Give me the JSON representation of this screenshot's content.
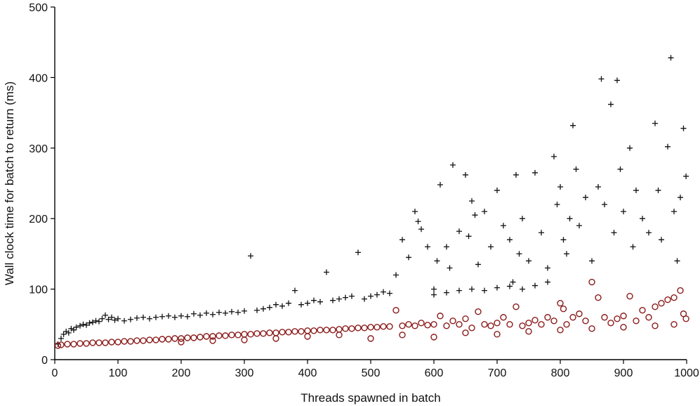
{
  "chart_data": {
    "type": "scatter",
    "title": "",
    "xlabel": "Threads spawned in batch",
    "ylabel": "Wall clock time for batch to return (ms)",
    "xlim": [
      0,
      1000
    ],
    "ylim": [
      0,
      500
    ],
    "xticks": [
      0,
      100,
      200,
      300,
      400,
      500,
      600,
      700,
      800,
      900,
      1000
    ],
    "yticks": [
      0,
      100,
      200,
      300,
      400,
      500
    ],
    "grid": false,
    "legend": "none",
    "colors": {
      "plus": "#111111",
      "circle": "#8b1a1a"
    },
    "series": [
      {
        "marker": "plus",
        "points": [
          [
            5,
            22
          ],
          [
            10,
            30
          ],
          [
            14,
            36
          ],
          [
            18,
            40
          ],
          [
            22,
            38
          ],
          [
            26,
            44
          ],
          [
            30,
            42
          ],
          [
            34,
            46
          ],
          [
            40,
            48
          ],
          [
            45,
            50
          ],
          [
            50,
            49
          ],
          [
            55,
            52
          ],
          [
            60,
            53
          ],
          [
            65,
            55
          ],
          [
            70,
            54
          ],
          [
            75,
            58
          ],
          [
            80,
            63
          ],
          [
            85,
            57
          ],
          [
            90,
            60
          ],
          [
            95,
            56
          ],
          [
            100,
            58
          ],
          [
            110,
            55
          ],
          [
            120,
            57
          ],
          [
            130,
            59
          ],
          [
            140,
            60
          ],
          [
            150,
            58
          ],
          [
            160,
            60
          ],
          [
            170,
            61
          ],
          [
            180,
            62
          ],
          [
            190,
            60
          ],
          [
            200,
            62
          ],
          [
            210,
            61
          ],
          [
            220,
            65
          ],
          [
            230,
            63
          ],
          [
            240,
            66
          ],
          [
            250,
            64
          ],
          [
            260,
            67
          ],
          [
            270,
            66
          ],
          [
            280,
            68
          ],
          [
            290,
            67
          ],
          [
            300,
            69
          ],
          [
            310,
            147
          ],
          [
            320,
            70
          ],
          [
            330,
            72
          ],
          [
            340,
            74
          ],
          [
            350,
            78
          ],
          [
            360,
            76
          ],
          [
            370,
            80
          ],
          [
            380,
            98
          ],
          [
            390,
            78
          ],
          [
            400,
            80
          ],
          [
            410,
            84
          ],
          [
            420,
            82
          ],
          [
            430,
            124
          ],
          [
            440,
            84
          ],
          [
            450,
            86
          ],
          [
            460,
            88
          ],
          [
            470,
            90
          ],
          [
            480,
            152
          ],
          [
            490,
            86
          ],
          [
            500,
            90
          ],
          [
            510,
            92
          ],
          [
            520,
            96
          ],
          [
            530,
            94
          ],
          [
            540,
            120
          ],
          [
            550,
            170
          ],
          [
            560,
            145
          ],
          [
            570,
            210
          ],
          [
            575,
            196
          ],
          [
            580,
            185
          ],
          [
            590,
            160
          ],
          [
            600,
            100
          ],
          [
            605,
            140
          ],
          [
            610,
            248
          ],
          [
            620,
            160
          ],
          [
            625,
            130
          ],
          [
            630,
            276
          ],
          [
            640,
            182
          ],
          [
            650,
            262
          ],
          [
            655,
            175
          ],
          [
            660,
            225
          ],
          [
            665,
            205
          ],
          [
            670,
            135
          ],
          [
            680,
            210
          ],
          [
            690,
            160
          ],
          [
            700,
            240
          ],
          [
            710,
            190
          ],
          [
            720,
            170
          ],
          [
            725,
            110
          ],
          [
            730,
            262
          ],
          [
            735,
            150
          ],
          [
            740,
            200
          ],
          [
            750,
            140
          ],
          [
            760,
            265
          ],
          [
            770,
            180
          ],
          [
            780,
            130
          ],
          [
            790,
            288
          ],
          [
            795,
            220
          ],
          [
            800,
            245
          ],
          [
            805,
            170
          ],
          [
            810,
            150
          ],
          [
            815,
            200
          ],
          [
            820,
            332
          ],
          [
            825,
            270
          ],
          [
            830,
            190
          ],
          [
            840,
            230
          ],
          [
            850,
            140
          ],
          [
            860,
            245
          ],
          [
            865,
            398
          ],
          [
            870,
            220
          ],
          [
            880,
            362
          ],
          [
            885,
            180
          ],
          [
            890,
            396
          ],
          [
            895,
            270
          ],
          [
            900,
            210
          ],
          [
            910,
            300
          ],
          [
            915,
            160
          ],
          [
            920,
            240
          ],
          [
            930,
            200
          ],
          [
            940,
            180
          ],
          [
            950,
            335
          ],
          [
            955,
            240
          ],
          [
            960,
            170
          ],
          [
            970,
            302
          ],
          [
            975,
            428
          ],
          [
            980,
            210
          ],
          [
            985,
            140
          ],
          [
            990,
            230
          ],
          [
            995,
            328
          ],
          [
            999,
            260
          ],
          [
            600,
            92
          ],
          [
            620,
            95
          ],
          [
            640,
            98
          ],
          [
            660,
            100
          ],
          [
            680,
            98
          ],
          [
            700,
            102
          ],
          [
            720,
            104
          ],
          [
            740,
            100
          ],
          [
            760,
            105
          ],
          [
            780,
            110
          ]
        ]
      },
      {
        "marker": "circle",
        "points": [
          [
            5,
            20
          ],
          [
            10,
            21
          ],
          [
            20,
            22
          ],
          [
            30,
            22
          ],
          [
            40,
            23
          ],
          [
            50,
            23
          ],
          [
            60,
            24
          ],
          [
            70,
            24
          ],
          [
            80,
            24
          ],
          [
            90,
            25
          ],
          [
            100,
            25
          ],
          [
            110,
            26
          ],
          [
            120,
            26
          ],
          [
            130,
            27
          ],
          [
            140,
            27
          ],
          [
            150,
            28
          ],
          [
            160,
            28
          ],
          [
            170,
            29
          ],
          [
            180,
            29
          ],
          [
            190,
            30
          ],
          [
            200,
            30
          ],
          [
            210,
            31
          ],
          [
            220,
            31
          ],
          [
            230,
            32
          ],
          [
            240,
            33
          ],
          [
            250,
            33
          ],
          [
            260,
            34
          ],
          [
            270,
            34
          ],
          [
            280,
            35
          ],
          [
            290,
            35
          ],
          [
            300,
            36
          ],
          [
            310,
            36
          ],
          [
            320,
            37
          ],
          [
            330,
            37
          ],
          [
            340,
            38
          ],
          [
            350,
            38
          ],
          [
            360,
            39
          ],
          [
            370,
            39
          ],
          [
            380,
            40
          ],
          [
            390,
            40
          ],
          [
            400,
            41
          ],
          [
            410,
            41
          ],
          [
            420,
            42
          ],
          [
            430,
            42
          ],
          [
            440,
            42
          ],
          [
            450,
            43
          ],
          [
            460,
            44
          ],
          [
            470,
            44
          ],
          [
            480,
            45
          ],
          [
            490,
            45
          ],
          [
            500,
            46
          ],
          [
            510,
            46
          ],
          [
            520,
            47
          ],
          [
            530,
            47
          ],
          [
            540,
            70
          ],
          [
            550,
            48
          ],
          [
            560,
            50
          ],
          [
            570,
            48
          ],
          [
            580,
            52
          ],
          [
            590,
            49
          ],
          [
            600,
            50
          ],
          [
            610,
            62
          ],
          [
            620,
            48
          ],
          [
            630,
            55
          ],
          [
            640,
            50
          ],
          [
            650,
            58
          ],
          [
            660,
            45
          ],
          [
            670,
            68
          ],
          [
            680,
            50
          ],
          [
            690,
            48
          ],
          [
            700,
            52
          ],
          [
            710,
            60
          ],
          [
            720,
            50
          ],
          [
            730,
            75
          ],
          [
            740,
            48
          ],
          [
            750,
            52
          ],
          [
            760,
            56
          ],
          [
            770,
            50
          ],
          [
            780,
            60
          ],
          [
            790,
            55
          ],
          [
            800,
            80
          ],
          [
            805,
            72
          ],
          [
            810,
            50
          ],
          [
            820,
            60
          ],
          [
            830,
            65
          ],
          [
            840,
            55
          ],
          [
            850,
            110
          ],
          [
            860,
            88
          ],
          [
            870,
            60
          ],
          [
            880,
            52
          ],
          [
            890,
            58
          ],
          [
            900,
            62
          ],
          [
            910,
            90
          ],
          [
            920,
            55
          ],
          [
            930,
            70
          ],
          [
            940,
            60
          ],
          [
            950,
            75
          ],
          [
            960,
            80
          ],
          [
            970,
            85
          ],
          [
            980,
            88
          ],
          [
            990,
            98
          ],
          [
            995,
            65
          ],
          [
            999,
            58
          ],
          [
            500,
            30
          ],
          [
            550,
            35
          ],
          [
            600,
            32
          ],
          [
            650,
            38
          ],
          [
            700,
            36
          ],
          [
            750,
            40
          ],
          [
            800,
            42
          ],
          [
            850,
            44
          ],
          [
            900,
            46
          ],
          [
            950,
            48
          ],
          [
            980,
            50
          ],
          [
            300,
            28
          ],
          [
            350,
            30
          ],
          [
            400,
            33
          ],
          [
            450,
            35
          ],
          [
            250,
            27
          ],
          [
            200,
            25
          ]
        ]
      }
    ]
  }
}
